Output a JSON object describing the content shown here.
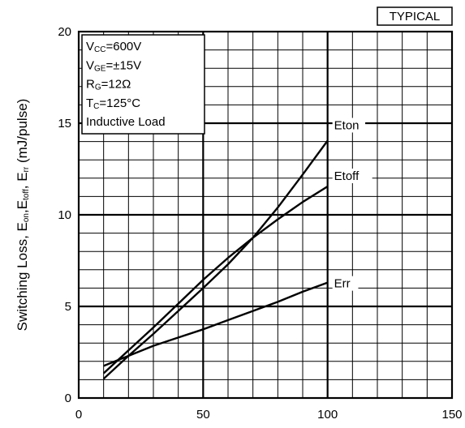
{
  "chart_data": {
    "type": "line",
    "badge": "TYPICAL",
    "ylabel_parts": [
      {
        "t": "Switching Loss, E",
        "sub": false
      },
      {
        "t": "on",
        "sub": true
      },
      {
        "t": ",E",
        "sub": false
      },
      {
        "t": "toff",
        "sub": true
      },
      {
        "t": ", E",
        "sub": false
      },
      {
        "t": "rr",
        "sub": true
      },
      {
        "t": " (mJ/pulse)",
        "sub": false
      }
    ],
    "xlabel": "",
    "xlim": [
      0,
      150
    ],
    "ylim": [
      0,
      20
    ],
    "xticks": [
      "0",
      "50",
      "100",
      "150"
    ],
    "yticks": [
      "0",
      "5",
      "10",
      "15",
      "20"
    ],
    "grid": true,
    "conditions": [
      [
        {
          "t": "V",
          "sub": false
        },
        {
          "t": "CC",
          "sub": true
        },
        {
          "t": "=600V",
          "sub": false
        }
      ],
      [
        {
          "t": "V",
          "sub": false
        },
        {
          "t": "GE",
          "sub": true
        },
        {
          "t": "=±15V",
          "sub": false
        }
      ],
      [
        {
          "t": "R",
          "sub": false
        },
        {
          "t": "G",
          "sub": true
        },
        {
          "t": "=12Ω",
          "sub": false
        }
      ],
      [
        {
          "t": "T",
          "sub": false
        },
        {
          "t": "C",
          "sub": true
        },
        {
          "t": "=125°C",
          "sub": false
        }
      ],
      [
        {
          "t": "Inductive Load",
          "sub": false
        }
      ]
    ],
    "series": [
      {
        "name": "Eton",
        "x": [
          10,
          20,
          30,
          40,
          50,
          60,
          70,
          80,
          90,
          100
        ],
        "y": [
          1.05,
          2.3,
          3.5,
          4.75,
          6.0,
          7.3,
          8.75,
          10.4,
          12.2,
          14.05
        ]
      },
      {
        "name": "Etoff",
        "x": [
          10,
          20,
          30,
          40,
          50,
          60,
          70,
          80,
          90,
          100
        ],
        "y": [
          1.35,
          2.6,
          3.85,
          5.15,
          6.45,
          7.65,
          8.75,
          9.75,
          10.7,
          11.55
        ]
      },
      {
        "name": "Err",
        "x": [
          10,
          20,
          30,
          40,
          50,
          60,
          70,
          80,
          90,
          100
        ],
        "y": [
          1.75,
          2.3,
          2.85,
          3.3,
          3.75,
          4.25,
          4.75,
          5.25,
          5.8,
          6.3
        ]
      }
    ]
  }
}
